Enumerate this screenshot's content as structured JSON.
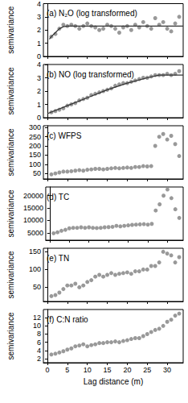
{
  "chart_data": [
    {
      "type": "scatter",
      "title": "(a) N₂O (log transformed)",
      "y_label": "semivariance",
      "xlim": [
        -1,
        34
      ],
      "xticks": [
        0,
        5,
        10,
        15,
        20,
        25,
        30
      ],
      "ylim": [
        0,
        4
      ],
      "yticks": [
        0,
        1,
        2,
        3,
        4
      ],
      "grid": false,
      "tick_labels": "y",
      "series": [
        {
          "type": "scatter",
          "color": "#999999",
          "marker": "circle",
          "x": [
            1,
            2,
            3,
            4,
            5,
            6,
            7,
            8,
            9,
            10,
            11,
            12,
            13,
            14,
            15,
            16,
            17,
            18,
            19,
            20,
            21,
            22,
            23,
            24,
            25,
            26,
            27,
            28,
            29,
            30,
            31,
            32,
            33
          ],
          "values": [
            1.5,
            1.7,
            2.1,
            2.4,
            2.3,
            2.4,
            2.3,
            2.1,
            2.3,
            2.5,
            2.3,
            2.2,
            2.0,
            2.1,
            2.4,
            2.3,
            2.1,
            1.8,
            2.2,
            2.3,
            2.0,
            2.4,
            2.2,
            2.6,
            2.3,
            2.1,
            2.9,
            2.4,
            2.6,
            2.1,
            1.9,
            2.5,
            3.0
          ]
        },
        {
          "type": "line",
          "color": "#333333",
          "line_style": "solid",
          "x": [
            0.5,
            1,
            2,
            3,
            4,
            5,
            34
          ],
          "values": [
            1.3,
            1.5,
            1.8,
            2.1,
            2.25,
            2.3,
            2.3
          ]
        }
      ]
    },
    {
      "type": "scatter",
      "title": "(b) NO (log transformed)",
      "y_label": "semivariance",
      "xlim": [
        -1,
        34
      ],
      "xticks": [
        0,
        5,
        10,
        15,
        20,
        25,
        30
      ],
      "ylim": [
        0,
        4
      ],
      "yticks": [
        0,
        1,
        2,
        3,
        4
      ],
      "grid": false,
      "tick_labels": "y",
      "series": [
        {
          "type": "scatter",
          "color": "#999999",
          "marker": "circle",
          "x": [
            1,
            2,
            3,
            4,
            5,
            6,
            7,
            8,
            9,
            10,
            11,
            12,
            13,
            14,
            15,
            16,
            17,
            18,
            19,
            20,
            21,
            22,
            23,
            24,
            25,
            26,
            27,
            28,
            29,
            30,
            31,
            32,
            33
          ],
          "values": [
            0.4,
            0.5,
            0.6,
            0.7,
            0.9,
            1.0,
            1.1,
            1.3,
            1.4,
            1.5,
            1.7,
            1.8,
            1.9,
            2.0,
            2.1,
            2.2,
            2.4,
            2.5,
            2.6,
            2.6,
            2.7,
            2.8,
            2.9,
            3.0,
            3.0,
            3.1,
            3.2,
            3.2,
            3.2,
            3.3,
            3.2,
            3.3,
            3.5
          ]
        },
        {
          "type": "line",
          "color": "#333333",
          "line_style": "solid",
          "x": [
            0,
            5,
            10,
            15,
            20,
            25,
            28,
            34
          ],
          "values": [
            0.3,
            0.9,
            1.5,
            2.1,
            2.6,
            3.0,
            3.2,
            3.2
          ]
        }
      ]
    },
    {
      "type": "scatter",
      "title": "(c) WFPS",
      "y_label": "semivariance",
      "xlim": [
        -1,
        34
      ],
      "xticks": [
        0,
        5,
        10,
        15,
        20,
        25,
        30
      ],
      "ylim": [
        20,
        310
      ],
      "yticks": [
        50,
        100,
        150,
        200,
        250,
        300
      ],
      "grid": false,
      "tick_labels": "y",
      "series": [
        {
          "type": "scatter",
          "color": "#999999",
          "marker": "circle",
          "x": [
            1,
            2,
            3,
            4,
            5,
            6,
            7,
            8,
            9,
            10,
            11,
            12,
            13,
            14,
            15,
            16,
            17,
            18,
            19,
            20,
            21,
            22,
            23,
            24,
            25,
            26,
            27,
            28,
            29,
            30,
            31,
            32,
            33
          ],
          "values": [
            45,
            50,
            55,
            60,
            60,
            62,
            65,
            68,
            65,
            70,
            72,
            75,
            75,
            72,
            75,
            78,
            80,
            78,
            80,
            82,
            80,
            85,
            85,
            90,
            88,
            90,
            200,
            250,
            265,
            235,
            255,
            210,
            145
          ]
        }
      ]
    },
    {
      "type": "scatter",
      "title": "(d) TC",
      "y_label": "semivariance",
      "xlim": [
        -1,
        34
      ],
      "xticks": [
        0,
        5,
        10,
        15,
        20,
        25,
        30
      ],
      "ylim": [
        2000,
        23500
      ],
      "yticks": [
        5000,
        10000,
        15000,
        20000
      ],
      "grid": false,
      "tick_labels": "y",
      "series": [
        {
          "type": "scatter",
          "color": "#999999",
          "marker": "circle",
          "x": [
            1,
            2,
            3,
            4,
            5,
            6,
            7,
            8,
            9,
            10,
            11,
            12,
            13,
            14,
            15,
            16,
            17,
            18,
            19,
            20,
            21,
            22,
            23,
            24,
            25,
            26,
            27,
            28,
            29,
            30,
            31,
            32,
            33
          ],
          "values": [
            4800,
            5200,
            5800,
            6200,
            6800,
            7000,
            7000,
            7200,
            7000,
            7200,
            7000,
            6900,
            7000,
            7200,
            7300,
            7400,
            7800,
            7600,
            7800,
            8000,
            8200,
            8300,
            8400,
            8500,
            8300,
            8600,
            14000,
            16500,
            20000,
            22500,
            19000,
            14500,
            11000
          ]
        }
      ]
    },
    {
      "type": "scatter",
      "title": "(e) TN",
      "y_label": "semivariance",
      "xlim": [
        -1,
        34
      ],
      "xticks": [
        0,
        5,
        10,
        15,
        20,
        25,
        30
      ],
      "ylim": [
        10,
        160
      ],
      "yticks": [
        50,
        100,
        150
      ],
      "grid": false,
      "tick_labels": "y",
      "series": [
        {
          "type": "scatter",
          "color": "#999999",
          "marker": "circle",
          "x": [
            1,
            2,
            3,
            4,
            5,
            6,
            7,
            8,
            9,
            10,
            11,
            12,
            13,
            14,
            15,
            16,
            17,
            18,
            19,
            20,
            21,
            22,
            23,
            24,
            25,
            26,
            27,
            28,
            29,
            30,
            31,
            32,
            33
          ],
          "values": [
            25,
            28,
            35,
            45,
            55,
            55,
            60,
            50,
            55,
            65,
            70,
            80,
            85,
            80,
            85,
            90,
            85,
            88,
            90,
            92,
            88,
            95,
            95,
            100,
            100,
            110,
            110,
            120,
            150,
            145,
            140,
            120,
            135
          ]
        }
      ]
    },
    {
      "type": "scatter",
      "title": "(f) C:N ratio",
      "y_label": "semivariance",
      "x_label": "Lag distance (m)",
      "xlim": [
        -1,
        34
      ],
      "xticks": [
        0,
        5,
        10,
        15,
        20,
        25,
        30
      ],
      "ylim": [
        1,
        14
      ],
      "yticks": [
        2,
        4,
        6,
        8,
        10,
        12
      ],
      "grid": false,
      "series": [
        {
          "type": "scatter",
          "color": "#999999",
          "marker": "circle",
          "x": [
            1,
            2,
            3,
            4,
            5,
            6,
            7,
            8,
            9,
            10,
            11,
            12,
            13,
            14,
            15,
            16,
            17,
            18,
            19,
            20,
            21,
            22,
            23,
            24,
            25,
            26,
            27,
            28,
            29,
            30,
            31,
            32,
            33
          ],
          "values": [
            3.0,
            3.2,
            3.5,
            3.8,
            4.2,
            4.5,
            5,
            5.2,
            5.5,
            5,
            5.3,
            5.5,
            5.8,
            5.8,
            6,
            6,
            6.2,
            6,
            6.3,
            6.5,
            6.8,
            7,
            7,
            7.5,
            8,
            8.5,
            9,
            9.3,
            10,
            11,
            11.5,
            12.5,
            13
          ]
        }
      ]
    }
  ]
}
